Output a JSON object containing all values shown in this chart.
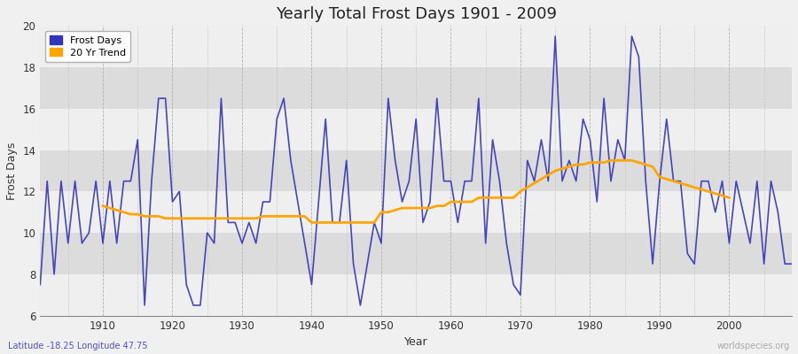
{
  "title": "Yearly Total Frost Days 1901 - 2009",
  "xlabel": "Year",
  "ylabel": "Frost Days",
  "lat_lon_label": "Latitude -18.25 Longitude 47.75",
  "watermark": "worldspecies.org",
  "ylim": [
    6,
    20
  ],
  "yticks": [
    6,
    8,
    10,
    12,
    14,
    16,
    18,
    20
  ],
  "frost_days_color": "#3333bb",
  "trend_color": "#FFA500",
  "fig_bg_color": "#f0f0f0",
  "plot_bg_color": "#dcdcdc",
  "years": [
    1901,
    1902,
    1903,
    1904,
    1905,
    1906,
    1907,
    1908,
    1909,
    1910,
    1911,
    1912,
    1913,
    1914,
    1915,
    1916,
    1917,
    1918,
    1919,
    1920,
    1921,
    1922,
    1923,
    1924,
    1925,
    1926,
    1927,
    1928,
    1929,
    1930,
    1931,
    1932,
    1933,
    1934,
    1935,
    1936,
    1937,
    1938,
    1939,
    1940,
    1941,
    1942,
    1943,
    1944,
    1945,
    1946,
    1947,
    1948,
    1949,
    1950,
    1951,
    1952,
    1953,
    1954,
    1955,
    1956,
    1957,
    1958,
    1959,
    1960,
    1961,
    1962,
    1963,
    1964,
    1965,
    1966,
    1967,
    1968,
    1969,
    1970,
    1971,
    1972,
    1973,
    1974,
    1975,
    1976,
    1977,
    1978,
    1979,
    1980,
    1981,
    1982,
    1983,
    1984,
    1985,
    1986,
    1987,
    1988,
    1989,
    1990,
    1991,
    1992,
    1993,
    1994,
    1995,
    1996,
    1997,
    1998,
    1999,
    2000,
    2001,
    2002,
    2003,
    2004,
    2005,
    2006,
    2007,
    2008,
    2009
  ],
  "frost_days": [
    7.5,
    12.5,
    8.0,
    12.5,
    9.5,
    12.5,
    9.5,
    10.0,
    12.5,
    9.5,
    12.5,
    9.5,
    12.5,
    12.5,
    14.5,
    6.5,
    12.5,
    16.5,
    16.5,
    11.5,
    12.0,
    7.5,
    6.5,
    6.5,
    10.0,
    9.5,
    16.5,
    10.5,
    10.5,
    9.5,
    10.5,
    9.5,
    11.5,
    11.5,
    15.5,
    16.5,
    13.5,
    11.5,
    9.5,
    7.5,
    11.5,
    15.5,
    10.5,
    10.5,
    13.5,
    8.5,
    6.5,
    8.5,
    10.5,
    9.5,
    16.5,
    13.5,
    11.5,
    12.5,
    15.5,
    10.5,
    11.5,
    16.5,
    12.5,
    12.5,
    10.5,
    12.5,
    12.5,
    16.5,
    9.5,
    14.5,
    12.5,
    9.5,
    7.5,
    7.0,
    13.5,
    12.5,
    14.5,
    12.5,
    19.5,
    12.5,
    13.5,
    12.5,
    15.5,
    14.5,
    11.5,
    16.5,
    12.5,
    14.5,
    13.5,
    19.5,
    18.5,
    12.5,
    8.5,
    12.5,
    15.5,
    12.5,
    12.5,
    9.0,
    8.5,
    12.5,
    12.5,
    11.0,
    12.5,
    9.5,
    12.5,
    11.0,
    9.5,
    12.5,
    8.5,
    12.5,
    11.0,
    8.5,
    8.5
  ],
  "trend_years": [
    1910,
    1911,
    1912,
    1913,
    1914,
    1915,
    1916,
    1917,
    1918,
    1919,
    1920,
    1921,
    1922,
    1923,
    1924,
    1925,
    1926,
    1927,
    1928,
    1929,
    1930,
    1931,
    1932,
    1933,
    1934,
    1935,
    1936,
    1937,
    1938,
    1939,
    1940,
    1941,
    1942,
    1943,
    1944,
    1945,
    1946,
    1947,
    1948,
    1949,
    1950,
    1951,
    1952,
    1953,
    1954,
    1955,
    1956,
    1957,
    1958,
    1959,
    1960,
    1961,
    1962,
    1963,
    1964,
    1965,
    1966,
    1967,
    1968,
    1969,
    1970,
    1971,
    1972,
    1973,
    1974,
    1975,
    1976,
    1977,
    1978,
    1979,
    1980,
    1981,
    1982,
    1983,
    1984,
    1985,
    1986,
    1987,
    1988,
    1989,
    1990,
    1991,
    1992,
    1993,
    1994,
    1995,
    1996,
    1997,
    1998,
    1999,
    2000
  ],
  "trend_values": [
    11.3,
    11.2,
    11.1,
    11.0,
    10.9,
    10.9,
    10.8,
    10.8,
    10.8,
    10.7,
    10.7,
    10.7,
    10.7,
    10.7,
    10.7,
    10.7,
    10.7,
    10.7,
    10.7,
    10.7,
    10.7,
    10.7,
    10.7,
    10.8,
    10.8,
    10.8,
    10.8,
    10.8,
    10.8,
    10.8,
    10.5,
    10.5,
    10.5,
    10.5,
    10.5,
    10.5,
    10.5,
    10.5,
    10.5,
    10.5,
    11.0,
    11.0,
    11.1,
    11.2,
    11.2,
    11.2,
    11.2,
    11.2,
    11.3,
    11.3,
    11.5,
    11.5,
    11.5,
    11.5,
    11.7,
    11.7,
    11.7,
    11.7,
    11.7,
    11.7,
    12.0,
    12.2,
    12.4,
    12.6,
    12.8,
    13.0,
    13.1,
    13.2,
    13.3,
    13.3,
    13.4,
    13.4,
    13.4,
    13.5,
    13.5,
    13.5,
    13.5,
    13.4,
    13.3,
    13.2,
    12.7,
    12.6,
    12.5,
    12.4,
    12.3,
    12.2,
    12.1,
    12.0,
    11.9,
    11.8,
    11.7
  ]
}
